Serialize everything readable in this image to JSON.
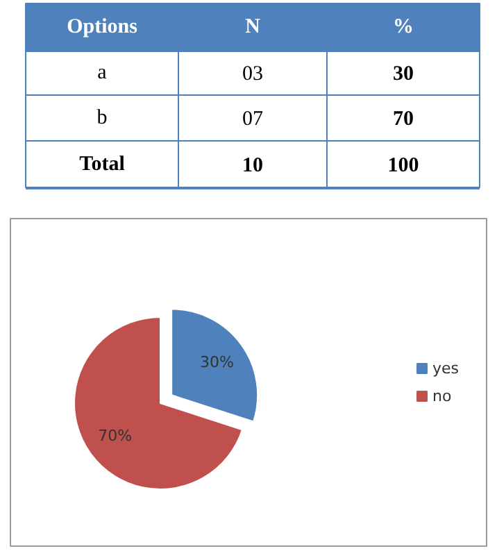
{
  "chart_data": [
    {
      "type": "other",
      "annotations": [
        "Options",
        "N",
        "%",
        "a",
        "03",
        "30",
        "b",
        "07",
        "70",
        "Total",
        "10",
        "100"
      ]
    },
    {
      "type": "pie",
      "categories": [
        "yes",
        "no"
      ],
      "values": [
        30,
        70
      ],
      "colors": [
        "#4f81bd",
        "#c0504d"
      ],
      "value_labels": [
        "30%",
        "70%"
      ],
      "legend": "right"
    }
  ]
}
